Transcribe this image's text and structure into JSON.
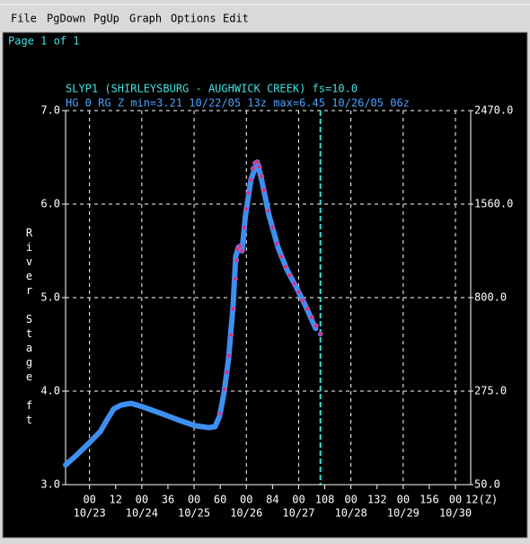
{
  "menu": [
    "File",
    "PgDown",
    "PgUp",
    "Graph",
    "Options",
    "Edit"
  ],
  "page_label": "Page 1 of 1",
  "chart_data": {
    "type": "line",
    "title": "SLYP1 (SHIRLEYSBURG - AUGHWICK CREEK) fs=10.0",
    "subtitle": "HG 0 RG Z min=3.21 10/22/05 13z max=6.45 10/26/05 06z",
    "y_label": "River Stage ft",
    "xlim": [
      -11,
      175
    ],
    "xticks": [
      {
        "value": 0,
        "label": "00"
      },
      12,
      {
        "value": 24,
        "label": "00"
      },
      36,
      {
        "value": 48,
        "label": "00"
      },
      60,
      {
        "value": 72,
        "label": "00"
      },
      84,
      {
        "value": 96,
        "label": "00"
      },
      108,
      {
        "value": 120,
        "label": "00"
      },
      132,
      {
        "value": 144,
        "label": "00"
      },
      156,
      {
        "value": 168,
        "label": "00"
      },
      {
        "value": 180,
        "label": "12(Z)"
      }
    ],
    "x_day_labels": [
      {
        "value": 0,
        "label": "10/23"
      },
      {
        "value": 24,
        "label": "10/24"
      },
      {
        "value": 48,
        "label": "10/25"
      },
      {
        "value": 72,
        "label": "10/26"
      },
      {
        "value": 96,
        "label": "10/27"
      },
      {
        "value": 120,
        "label": "10/28"
      },
      {
        "value": 144,
        "label": "10/29"
      },
      {
        "value": 168,
        "label": "10/30"
      }
    ],
    "ylim": [
      3,
      7
    ],
    "yticks": [
      {
        "value": 3,
        "label": "3.0"
      },
      {
        "value": 4,
        "label": "4.0"
      },
      {
        "value": 5,
        "label": "5.0"
      },
      {
        "value": 6,
        "label": "6.0"
      },
      {
        "value": 7,
        "label": "7.0"
      }
    ],
    "y2lim": [
      50,
      2470
    ],
    "y2ticks": [
      {
        "value": 50,
        "label": "50.0"
      },
      {
        "value": 275,
        "label": "275.0"
      },
      {
        "value": 800,
        "label": "800.0"
      },
      {
        "value": 1560,
        "label": "1560.0"
      },
      {
        "value": 2470,
        "label": "2470.0"
      }
    ],
    "grid": true,
    "now_line": 106,
    "series": [
      {
        "color": "#3d8ff0",
        "style": "thick-line",
        "x": [
          -11,
          -6.2,
          0,
          5,
          8.2,
          11.1,
          14.4,
          19,
          24.7,
          33,
          41,
          48.6,
          54.8,
          57.6,
          59.7,
          61.8,
          63.8,
          65.9,
          67.1,
          68.4,
          70,
          71.6,
          74.1,
          77,
          79,
          82.4,
          86.5,
          90.6,
          94.7,
          98.8,
          103.8
        ],
        "values": [
          3.21,
          3.31,
          3.45,
          3.57,
          3.7,
          3.81,
          3.85,
          3.87,
          3.83,
          3.76,
          3.69,
          3.63,
          3.61,
          3.62,
          3.73,
          3.99,
          4.34,
          4.91,
          5.44,
          5.54,
          5.5,
          5.88,
          6.26,
          6.45,
          6.26,
          5.88,
          5.54,
          5.3,
          5.12,
          4.93,
          4.67
        ]
      },
      {
        "color": "#e8304f",
        "edge": "#7b6cff",
        "style": "dots",
        "x": [
          60,
          62,
          63,
          64,
          65,
          66,
          67,
          67.5,
          68,
          69,
          70,
          71,
          72,
          73,
          74,
          75,
          76,
          77,
          78,
          79,
          80,
          82,
          84,
          86,
          88,
          90,
          92,
          94,
          96,
          98,
          100,
          102,
          104,
          106
        ],
        "values": [
          3.76,
          4.02,
          4.2,
          4.38,
          4.6,
          4.88,
          5.2,
          5.4,
          5.52,
          5.55,
          5.5,
          5.75,
          5.95,
          6.12,
          6.26,
          6.38,
          6.44,
          6.45,
          6.4,
          6.3,
          6.15,
          5.93,
          5.75,
          5.58,
          5.44,
          5.33,
          5.24,
          5.15,
          5.06,
          4.97,
          4.88,
          4.79,
          4.7,
          4.61
        ]
      }
    ]
  }
}
